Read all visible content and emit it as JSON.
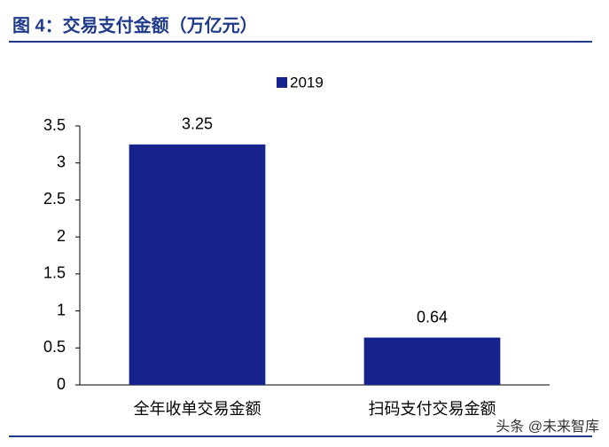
{
  "chart_data": {
    "type": "bar",
    "title": "图 4：交易支付金额（万亿元）",
    "categories": [
      "全年收单交易金额",
      "扫码支付交易金额"
    ],
    "series": [
      {
        "name": "2019",
        "color": "#17238c",
        "values": [
          3.25,
          0.64
        ]
      }
    ],
    "ylim": [
      0,
      3.5
    ],
    "yticks": [
      0,
      0.5,
      1,
      1.5,
      2,
      2.5,
      3,
      3.5
    ],
    "grid": false,
    "legend": "top",
    "watermark": "头条 @未来智库"
  }
}
